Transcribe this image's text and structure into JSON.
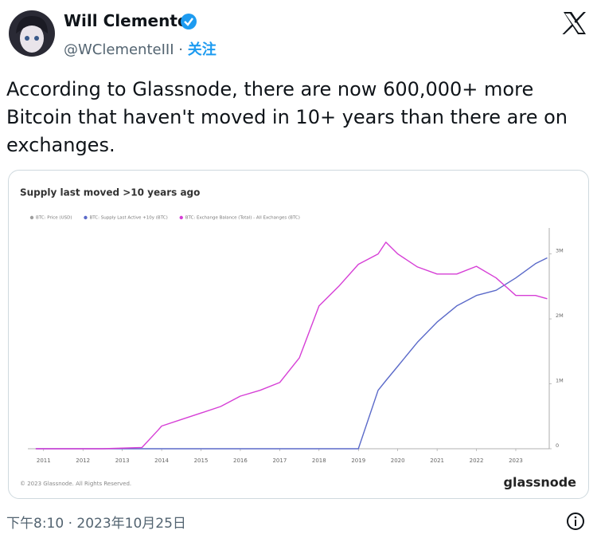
{
  "header": {
    "name": "Will Clemente",
    "handle": "@WClementeIII",
    "separator": "·",
    "follow": "关注"
  },
  "tweet": {
    "text_lines": [
      "According to Glassnode, there are now 600,000+ more",
      "Bitcoin that haven't moved in 10+ years than there are on",
      "exchanges."
    ]
  },
  "chart_data": {
    "type": "line",
    "title": "Supply last moved >10 years ago",
    "x": [
      2010.8,
      2011.5,
      2012.5,
      2013.5,
      2013.9,
      2014,
      2014.5,
      2015,
      2015.5,
      2016,
      2016.5,
      2017,
      2017.5,
      2018,
      2018.5,
      2019,
      2019.5,
      2019.7,
      2020,
      2020.5,
      2021,
      2021.5,
      2022,
      2022.5,
      2023,
      2023.5,
      2023.8
    ],
    "series": [
      {
        "name": "BTC: Price (USD)",
        "color": "#9e9e9e",
        "values": [
          null,
          null,
          null,
          null,
          null,
          null,
          null,
          null,
          null,
          null,
          null,
          null,
          null,
          null,
          null,
          null,
          null,
          null,
          null,
          null,
          null,
          null,
          null,
          null,
          null,
          null,
          null
        ]
      },
      {
        "name": "BTC: Supply Last Active +10y (BTC)",
        "color": "#5b6ac9",
        "values": [
          0,
          0,
          0,
          0,
          0,
          0,
          0,
          0,
          0,
          0,
          0,
          0,
          0,
          0,
          0,
          0,
          900000,
          1050000,
          1270000,
          1640000,
          1950000,
          2200000,
          2360000,
          2440000,
          2630000,
          2850000,
          2940000
        ]
      },
      {
        "name": "BTC: Exchange Balance (Total) - All Exchanges (BTC)",
        "color": "#d63fd6",
        "values": [
          0,
          0,
          0,
          20000,
          280000,
          350000,
          450000,
          550000,
          650000,
          810000,
          900000,
          1020000,
          1400000,
          2200000,
          2500000,
          2840000,
          3000000,
          3180000,
          3000000,
          2800000,
          2690000,
          2690000,
          2810000,
          2630000,
          2360000,
          2360000,
          2310000
        ]
      }
    ],
    "xlim": [
      2010.6,
      2023.85
    ],
    "xticks": [
      2011,
      2012,
      2013,
      2014,
      2015,
      2016,
      2017,
      2018,
      2019,
      2020,
      2021,
      2022,
      2023
    ],
    "ylim": [
      0,
      3400000
    ],
    "yticks": [
      0,
      {
        "value": 1000000,
        "label": "1M"
      },
      {
        "value": 2000000,
        "label": "2M"
      },
      {
        "value": 3000000,
        "label": "3M"
      }
    ],
    "y_axis_side": "right",
    "grid": false,
    "copyright": "© 2023 Glassnode. All Rights Reserved.",
    "brand": "glassnode"
  },
  "footer": {
    "timestamp": "下午8:10 · 2023年10月25日"
  }
}
